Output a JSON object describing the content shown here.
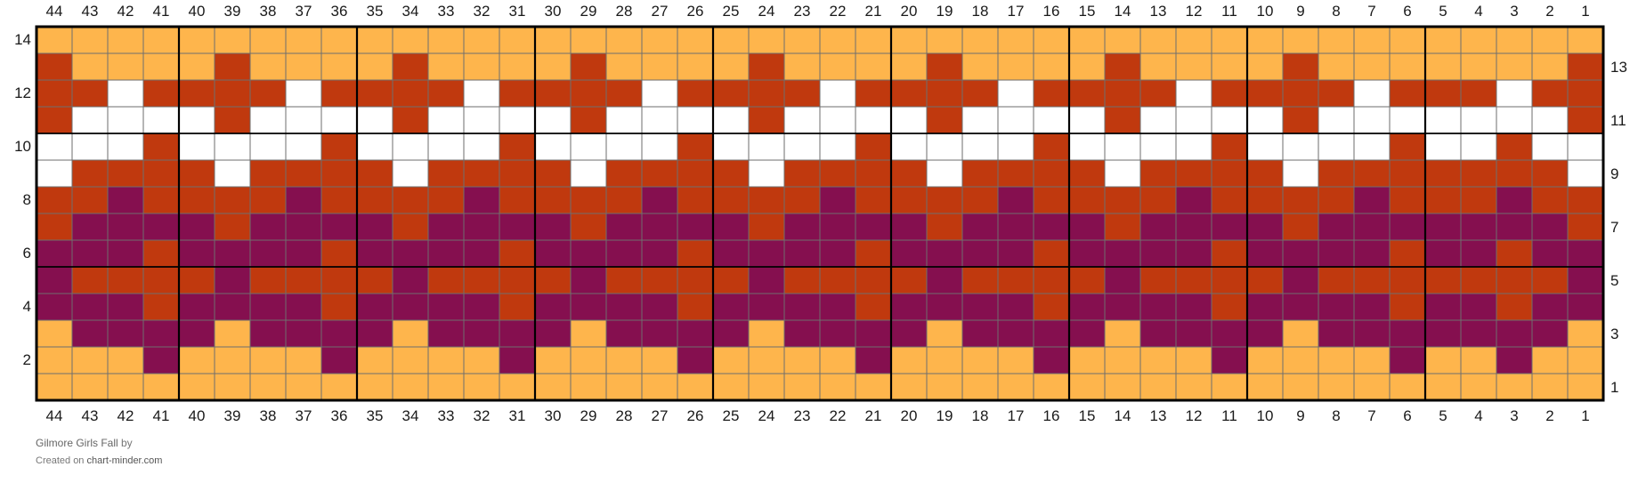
{
  "palette": {
    "Y": "#FEB54C",
    "R": "#C0390E",
    "W": "#FFFFFF",
    "P": "#850F4F"
  },
  "grid_lines": {
    "thin": "#6e6e6e",
    "bold": "#000000"
  },
  "chart_data": {
    "type": "knitting-chart",
    "stitches": 44,
    "rows": 14,
    "column_numbers_left_to_right": [
      44,
      43,
      42,
      41,
      40,
      39,
      38,
      37,
      36,
      35,
      34,
      33,
      32,
      31,
      30,
      29,
      28,
      27,
      26,
      25,
      24,
      23,
      22,
      21,
      20,
      19,
      18,
      17,
      16,
      15,
      14,
      13,
      12,
      11,
      10,
      9,
      8,
      7,
      6,
      5,
      4,
      3,
      2,
      1
    ],
    "left_row_labels": [
      "14",
      "12",
      "10",
      "8",
      "6",
      "4",
      "2"
    ],
    "right_row_labels": [
      "13",
      "11",
      "9",
      "7",
      "5",
      "3",
      "1"
    ],
    "repeat_width": 5,
    "repeat_legend": {
      "Y": "yellow",
      "R": "rust",
      "W": "white",
      "P": "plum"
    },
    "grid_rows_top_to_bottom": [
      {
        "row": 14,
        "repeat": "YYYYY",
        "edge": "YYYY"
      },
      {
        "row": 13,
        "repeat": "RYYYY",
        "edge": "YYYR"
      },
      {
        "row": 12,
        "repeat": "RRWRR",
        "edge": "RWRR"
      },
      {
        "row": 11,
        "repeat": "RWWWW",
        "edge": "WWWR"
      },
      {
        "row": 10,
        "repeat": "WWWRW",
        "edge": "WRWW"
      },
      {
        "row": 9,
        "repeat": "WRRRR",
        "edge": "RRRW"
      },
      {
        "row": 8,
        "repeat": "RRPRR",
        "edge": "RPRR"
      },
      {
        "row": 7,
        "repeat": "RPPPP",
        "edge": "PPPR"
      },
      {
        "row": 6,
        "repeat": "PPPRP",
        "edge": "PRPP"
      },
      {
        "row": 5,
        "repeat": "PRRRR",
        "edge": "RRRP"
      },
      {
        "row": 4,
        "repeat": "PPPRP",
        "edge": "PRPP"
      },
      {
        "row": 3,
        "repeat": "YPPPP",
        "edge": "PPPY"
      },
      {
        "row": 2,
        "repeat": "YYYPY",
        "edge": "YPYY"
      },
      {
        "row": 1,
        "repeat": "YYYYY",
        "edge": "YYYY"
      }
    ]
  },
  "footer": {
    "title": "Gilmore Girls Fall",
    "by": " by",
    "created_on": "Created on ",
    "site": "chart-minder.com"
  }
}
